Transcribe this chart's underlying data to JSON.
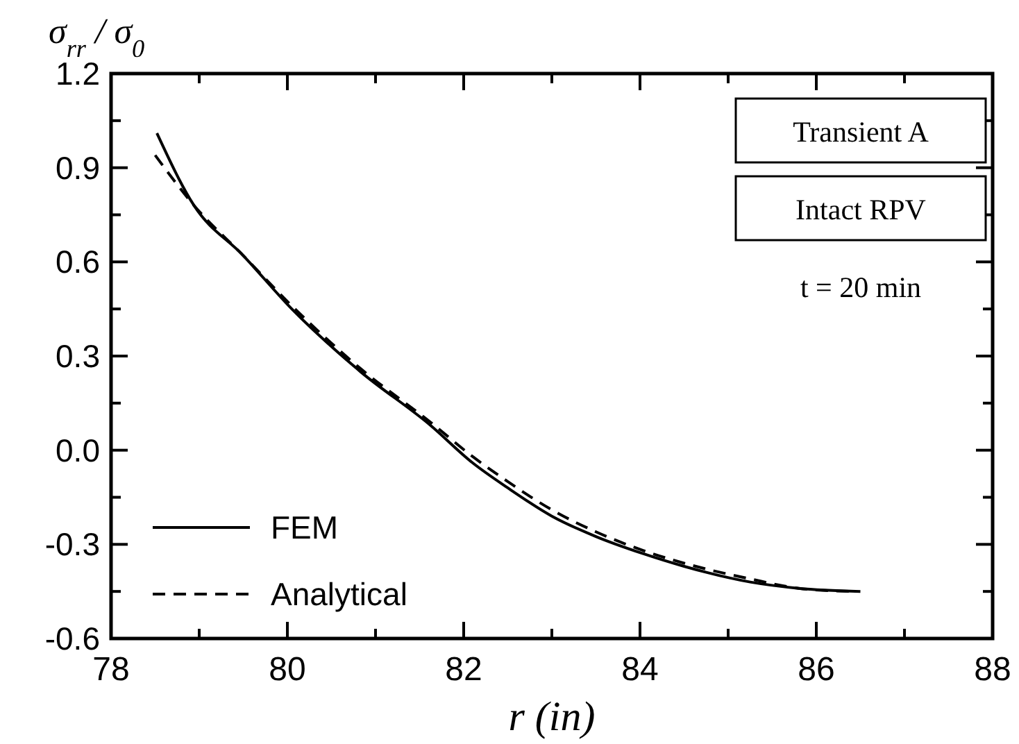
{
  "chart_data": {
    "type": "line",
    "xlabel": "r (in)",
    "ylabel": "σ$_{rr}$ / σ$_{0}$",
    "xlim": [
      78,
      88
    ],
    "xticks": [
      78,
      {
        "value": 79,
        "label": null
      },
      80,
      {
        "value": 81,
        "label": null
      },
      82,
      {
        "value": 83,
        "label": null
      },
      84,
      {
        "value": 85,
        "label": null
      },
      86,
      {
        "value": 87,
        "label": null
      },
      88
    ],
    "ylim": [
      -0.6,
      1.2
    ],
    "yticks": [
      {
        "value": -0.6,
        "label": "-0.6"
      },
      {
        "value": -0.45,
        "label": null
      },
      {
        "value": -0.3,
        "label": "-0.3"
      },
      {
        "value": -0.15,
        "label": null
      },
      {
        "value": 0,
        "label": "0.0"
      },
      {
        "value": 0.15,
        "label": null
      },
      {
        "value": 0.3,
        "label": "0.3"
      },
      {
        "value": 0.45,
        "label": null
      },
      {
        "value": 0.6,
        "label": "0.6"
      },
      {
        "value": 0.75,
        "label": null
      },
      {
        "value": 0.9,
        "label": "0.9"
      },
      {
        "value": 1.05,
        "label": null
      },
      {
        "value": 1.2,
        "label": "1.2"
      }
    ],
    "series": [
      {
        "name": "FEM",
        "color": "#000000",
        "line_style": "solid",
        "x": [
          78.52,
          78.94,
          79.5,
          80.05,
          80.83,
          81.62,
          82.1,
          82.5,
          83,
          83.5,
          84.04,
          84.5,
          85.25,
          85.8,
          86.5
        ],
        "values": [
          1.01,
          0.78,
          0.62,
          0.45,
          0.25,
          0.08,
          -0.04,
          -0.12,
          -0.21,
          -0.275,
          -0.33,
          -0.37,
          -0.42,
          -0.44,
          -0.45
        ]
      },
      {
        "name": "Analytical",
        "color": "#000000",
        "line_style": "dashed",
        "x": [
          78.5,
          78.94,
          79.5,
          80.05,
          80.83,
          81.62,
          82.1,
          82.5,
          83,
          83.5,
          84.04,
          84.5,
          85.25,
          85.8,
          86.4
        ],
        "values": [
          0.94,
          0.78,
          0.62,
          0.46,
          0.26,
          0.09,
          -0.02,
          -0.1,
          -0.19,
          -0.26,
          -0.32,
          -0.36,
          -0.41,
          -0.44,
          -0.45
        ]
      }
    ],
    "legend": "bottom left",
    "grid": false,
    "annotations": [
      "Transient A",
      "Intact RPV",
      "t = 20 min"
    ]
  }
}
